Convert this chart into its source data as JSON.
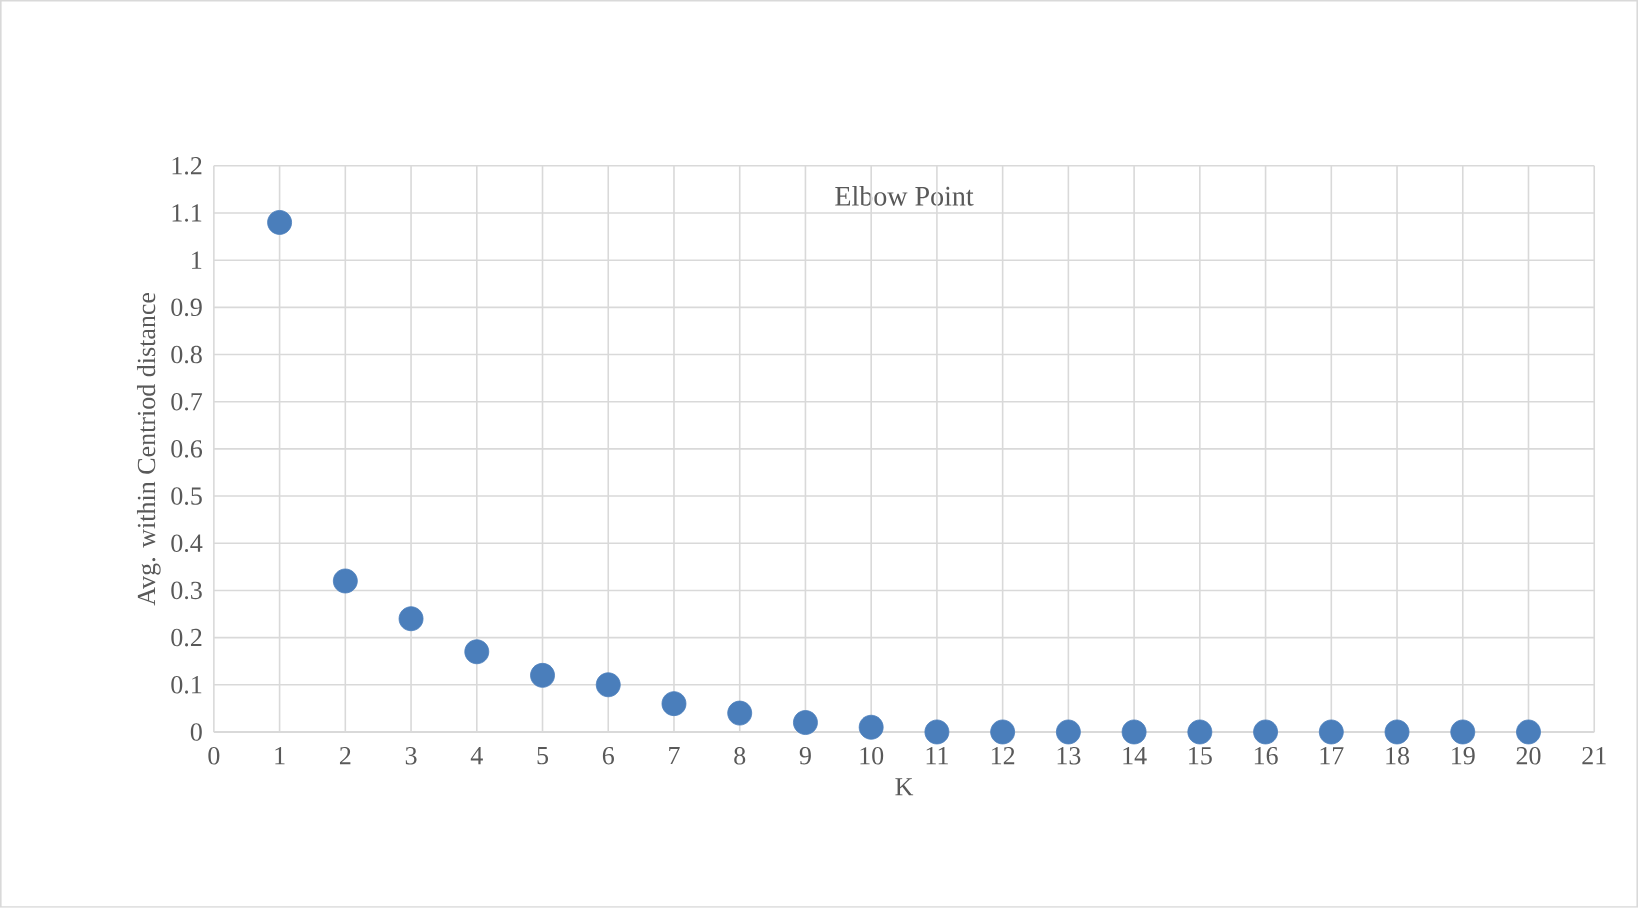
{
  "chart_data": {
    "type": "scatter",
    "title": "Elbow Point",
    "xlabel": "K",
    "ylabel": "Avg. within Centriod distance",
    "x": [
      1,
      2,
      3,
      4,
      5,
      6,
      7,
      8,
      9,
      10,
      11,
      12,
      13,
      14,
      15,
      16,
      17,
      18,
      19,
      20
    ],
    "values": [
      1.08,
      0.32,
      0.24,
      0.17,
      0.12,
      0.1,
      0.06,
      0.04,
      0.02,
      0.01,
      0,
      0,
      0,
      0,
      0,
      0,
      0,
      0,
      0,
      0
    ],
    "color": "#4a7ebb",
    "marker": "circle",
    "grid": true,
    "xlim": [
      0,
      21
    ],
    "xticks": [
      0,
      1,
      2,
      3,
      4,
      5,
      6,
      7,
      8,
      9,
      10,
      11,
      12,
      13,
      14,
      15,
      16,
      17,
      18,
      19,
      20,
      21
    ],
    "ylim": [
      0,
      1.2
    ],
    "yticks": [
      0,
      0.1,
      0.2,
      0.3,
      0.4,
      0.5,
      0.6,
      0.7,
      0.8,
      0.9,
      1,
      1.1,
      1.2
    ]
  }
}
